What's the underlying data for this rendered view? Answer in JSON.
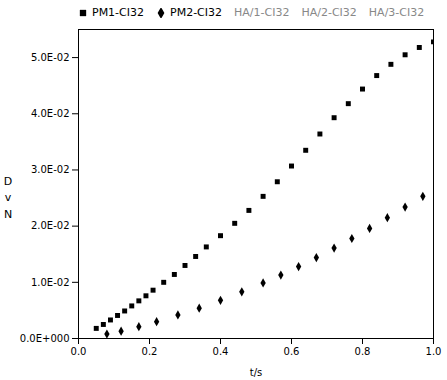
{
  "chart_data": {
    "type": "scatter",
    "xlabel": "t/s",
    "ylabel": "D\nv\nN",
    "xlim": [
      0.0,
      1.0
    ],
    "ylim": [
      0.0,
      0.055
    ],
    "xticks": [
      {
        "value": 0.0,
        "label": "0.0"
      },
      0.2,
      0.4,
      0.6,
      0.8,
      {
        "value": 1.0,
        "label": "1.0"
      }
    ],
    "yticks": [
      {
        "value": 0.0,
        "label": "0.0E+000"
      },
      {
        "value": 0.01,
        "label": "1.0E-02"
      },
      {
        "value": 0.02,
        "label": "2.0E-02"
      },
      {
        "value": 0.03,
        "label": "3.0E-02"
      },
      {
        "value": 0.04,
        "label": "4.0E-02"
      },
      {
        "value": 0.05,
        "label": "5.0E-02"
      }
    ],
    "grid": false,
    "legend": "upper left",
    "series": [
      {
        "name": "PM1-CI32",
        "marker": "square",
        "x": [
          0.05,
          0.07,
          0.09,
          0.11,
          0.13,
          0.15,
          0.17,
          0.19,
          0.21,
          0.24,
          0.27,
          0.3,
          0.33,
          0.36,
          0.4,
          0.44,
          0.48,
          0.52,
          0.56,
          0.6,
          0.64,
          0.68,
          0.72,
          0.76,
          0.8,
          0.84,
          0.88,
          0.92,
          0.96,
          1.0
        ],
        "values": [
          0.0018,
          0.0025,
          0.0033,
          0.0041,
          0.0049,
          0.0058,
          0.0067,
          0.0076,
          0.0086,
          0.01,
          0.0114,
          0.013,
          0.0146,
          0.0163,
          0.0183,
          0.0205,
          0.0228,
          0.0253,
          0.0279,
          0.0307,
          0.0335,
          0.0364,
          0.0393,
          0.0418,
          0.0444,
          0.0468,
          0.0488,
          0.0505,
          0.0518,
          0.0528
        ]
      },
      {
        "name": "PM2-CI32",
        "marker": "diamond",
        "x": [
          0.08,
          0.12,
          0.17,
          0.22,
          0.28,
          0.34,
          0.4,
          0.46,
          0.52,
          0.57,
          0.62,
          0.67,
          0.72,
          0.77,
          0.82,
          0.87,
          0.92,
          0.97
        ],
        "values": [
          0.0008,
          0.0013,
          0.0021,
          0.003,
          0.0042,
          0.0054,
          0.0068,
          0.0083,
          0.0099,
          0.0113,
          0.0128,
          0.0144,
          0.0161,
          0.0178,
          0.0196,
          0.0215,
          0.0234,
          0.0253
        ]
      },
      {
        "name": "HA/1-CI32",
        "color": "#888888",
        "x": [],
        "values": []
      },
      {
        "name": "HA/2-CI32",
        "color": "#888888",
        "x": [],
        "values": []
      },
      {
        "name": "HA/3-CI32",
        "color": "#888888",
        "x": [],
        "values": []
      }
    ]
  }
}
